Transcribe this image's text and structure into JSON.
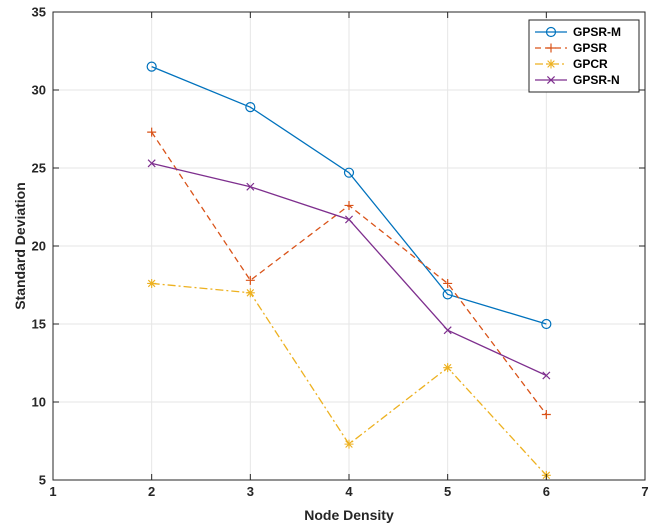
{
  "chart_data": {
    "type": "line",
    "xlabel": "Node Density",
    "ylabel": "Standard Deviation",
    "xlim": [
      1,
      7
    ],
    "ylim": [
      5,
      35
    ],
    "xticks": [
      1,
      2,
      3,
      4,
      5,
      6,
      7
    ],
    "yticks": [
      5,
      10,
      15,
      20,
      25,
      30,
      35
    ],
    "grid": true,
    "legend_position": "top-right",
    "x": [
      2,
      3,
      4,
      5,
      6
    ],
    "series": [
      {
        "name": "GPSR-M",
        "values": [
          31.5,
          28.9,
          24.7,
          16.9,
          15.0
        ],
        "color": "#0072BD",
        "line": "solid",
        "marker": "circle"
      },
      {
        "name": "GPSR",
        "values": [
          27.3,
          17.8,
          22.6,
          17.6,
          9.2
        ],
        "color": "#D95319",
        "line": "dashed",
        "marker": "plus"
      },
      {
        "name": "GPCR",
        "values": [
          17.6,
          17.0,
          7.3,
          12.2,
          5.3
        ],
        "color": "#EDB120",
        "line": "dashdot",
        "marker": "asterisk"
      },
      {
        "name": "GPSR-N",
        "values": [
          25.3,
          23.8,
          21.7,
          14.6,
          11.7
        ],
        "color": "#7E2F8E",
        "line": "solid",
        "marker": "cross"
      }
    ]
  }
}
